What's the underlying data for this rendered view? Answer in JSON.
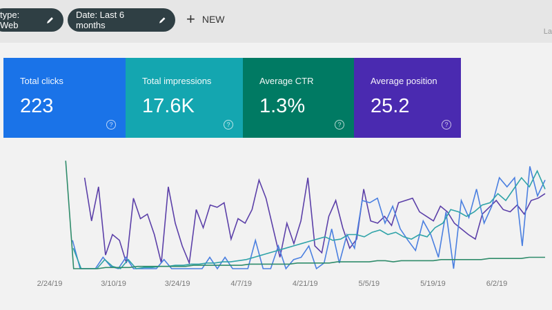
{
  "filters": [
    {
      "label": "type: Web",
      "icon": "pencil-icon"
    },
    {
      "label": "Date: Last 6 months",
      "icon": "pencil-icon"
    }
  ],
  "new_button": {
    "icon": "plus-icon",
    "label": "NEW"
  },
  "corner_text": "La",
  "metrics": [
    {
      "label": "Total clicks",
      "value": "223",
      "color": "#1a73e8"
    },
    {
      "label": "Total impressions",
      "value": "17.6K",
      "color": "#14a6b0"
    },
    {
      "label": "Average CTR",
      "value": "1.3%",
      "color": "#007a63"
    },
    {
      "label": "Average position",
      "value": "25.2",
      "color": "#4a2ab0"
    }
  ],
  "chart_data": {
    "type": "line",
    "x_tick_labels": [
      "2/24/19",
      "3/10/19",
      "3/24/19",
      "4/7/19",
      "4/21/19",
      "5/5/19",
      "5/19/19",
      "6/2/19"
    ],
    "y_axis_shown": false,
    "grid": false,
    "series": [
      {
        "color": "#5b3fa8",
        "values": [
          null,
          null,
          98,
          null,
          null,
          80,
          42,
          72,
          12,
          30,
          25,
          5,
          62,
          44,
          48,
          30,
          5,
          72,
          40,
          20,
          5,
          52,
          36,
          56,
          54,
          58,
          26,
          44,
          40,
          52,
          78,
          62,
          36,
          10,
          40,
          22,
          42,
          80,
          20,
          14,
          46,
          60,
          36,
          18,
          26,
          70,
          42,
          40,
          46,
          38,
          58,
          60,
          62,
          50,
          46,
          42,
          55,
          50,
          40,
          35,
          30,
          26,
          48,
          54,
          60,
          52,
          50,
          56,
          48,
          60,
          62,
          66
        ]
      },
      {
        "color": "#4a7fe0",
        "values": [
          0,
          null,
          null,
          25,
          0,
          0,
          0,
          10,
          2,
          0,
          10,
          0,
          0,
          0,
          0,
          8,
          0,
          0,
          0,
          0,
          0,
          10,
          0,
          10,
          0,
          0,
          0,
          25,
          0,
          0,
          20,
          0,
          8,
          10,
          20,
          0,
          5,
          35,
          5,
          30,
          18,
          60,
          58,
          62,
          40,
          55,
          35,
          25,
          16,
          42,
          30,
          10,
          50,
          0,
          60,
          45,
          70,
          40,
          55,
          80,
          72,
          80,
          20,
          90,
          64,
          78
        ]
      },
      {
        "color": "#2fa3a8",
        "values": [
          0,
          null,
          null,
          18,
          0,
          0,
          0,
          8,
          2,
          0,
          8,
          0,
          1,
          1,
          2,
          2,
          3,
          3,
          4,
          4,
          5,
          5,
          6,
          6,
          7,
          8,
          10,
          12,
          14,
          16,
          18,
          20,
          22,
          24,
          26,
          28,
          25,
          26,
          30,
          30,
          28,
          32,
          34,
          30,
          32,
          28,
          26,
          30,
          28,
          36,
          40,
          52,
          50,
          46,
          50,
          56,
          58,
          66,
          60,
          70,
          80,
          72,
          86,
          70
        ]
      },
      {
        "color": "#2e8b6a",
        "values": [
          0,
          null,
          95,
          0,
          0,
          0,
          0,
          1,
          1,
          1,
          1,
          2,
          2,
          2,
          2,
          2,
          2,
          2,
          3,
          3,
          3,
          3,
          3,
          3,
          3,
          4,
          4,
          4,
          4,
          4,
          4,
          5,
          5,
          5,
          5,
          5,
          6,
          6,
          6,
          6,
          6,
          7,
          7,
          6,
          7,
          7,
          7,
          7,
          7,
          8,
          8,
          8,
          8,
          8,
          8,
          9,
          9,
          9,
          9,
          9,
          10,
          10,
          10
        ]
      }
    ]
  }
}
